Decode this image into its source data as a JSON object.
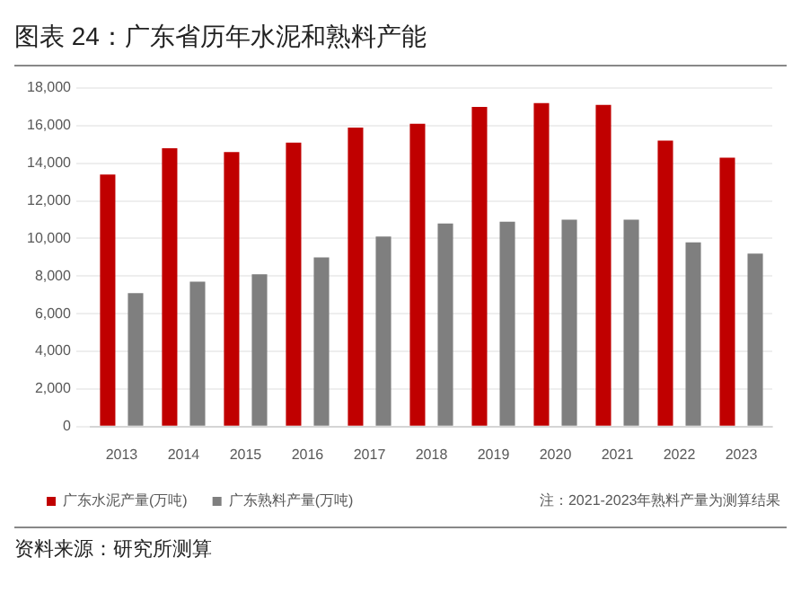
{
  "chart_data": {
    "type": "bar",
    "title": "图表 24：广东省历年水泥和熟料产能",
    "categories": [
      "2013",
      "2014",
      "2015",
      "2016",
      "2017",
      "2018",
      "2019",
      "2020",
      "2021",
      "2022",
      "2023"
    ],
    "series": [
      {
        "name": "广东水泥产量(万吨)",
        "color": "#c00000",
        "values": [
          13400,
          14800,
          14600,
          15100,
          15900,
          16100,
          17000,
          17200,
          17100,
          15200,
          14300
        ]
      },
      {
        "name": "广东熟料产量(万吨)",
        "color": "#7f7f7f",
        "values": [
          7100,
          7700,
          8100,
          9000,
          10100,
          10800,
          10900,
          11000,
          11000,
          9800,
          9200
        ]
      }
    ],
    "ylim": [
      0,
      18000
    ],
    "yticks": [
      0,
      {
        "value": 2000,
        "label": "2,000"
      },
      {
        "value": 4000,
        "label": "4,000"
      },
      {
        "value": 6000,
        "label": "6,000"
      },
      {
        "value": 8000,
        "label": "8,000"
      },
      {
        "value": 10000,
        "label": "10,000"
      },
      {
        "value": 12000,
        "label": "12,000"
      },
      {
        "value": 14000,
        "label": "14,000"
      },
      {
        "value": 16000,
        "label": "16,000"
      },
      {
        "value": 18000,
        "label": "18,000"
      }
    ],
    "grid": "y",
    "legend": "bottom",
    "annotations": [
      "注：2021-2023年熟料产量为测算结果",
      "资料来源：研究所测算"
    ]
  }
}
